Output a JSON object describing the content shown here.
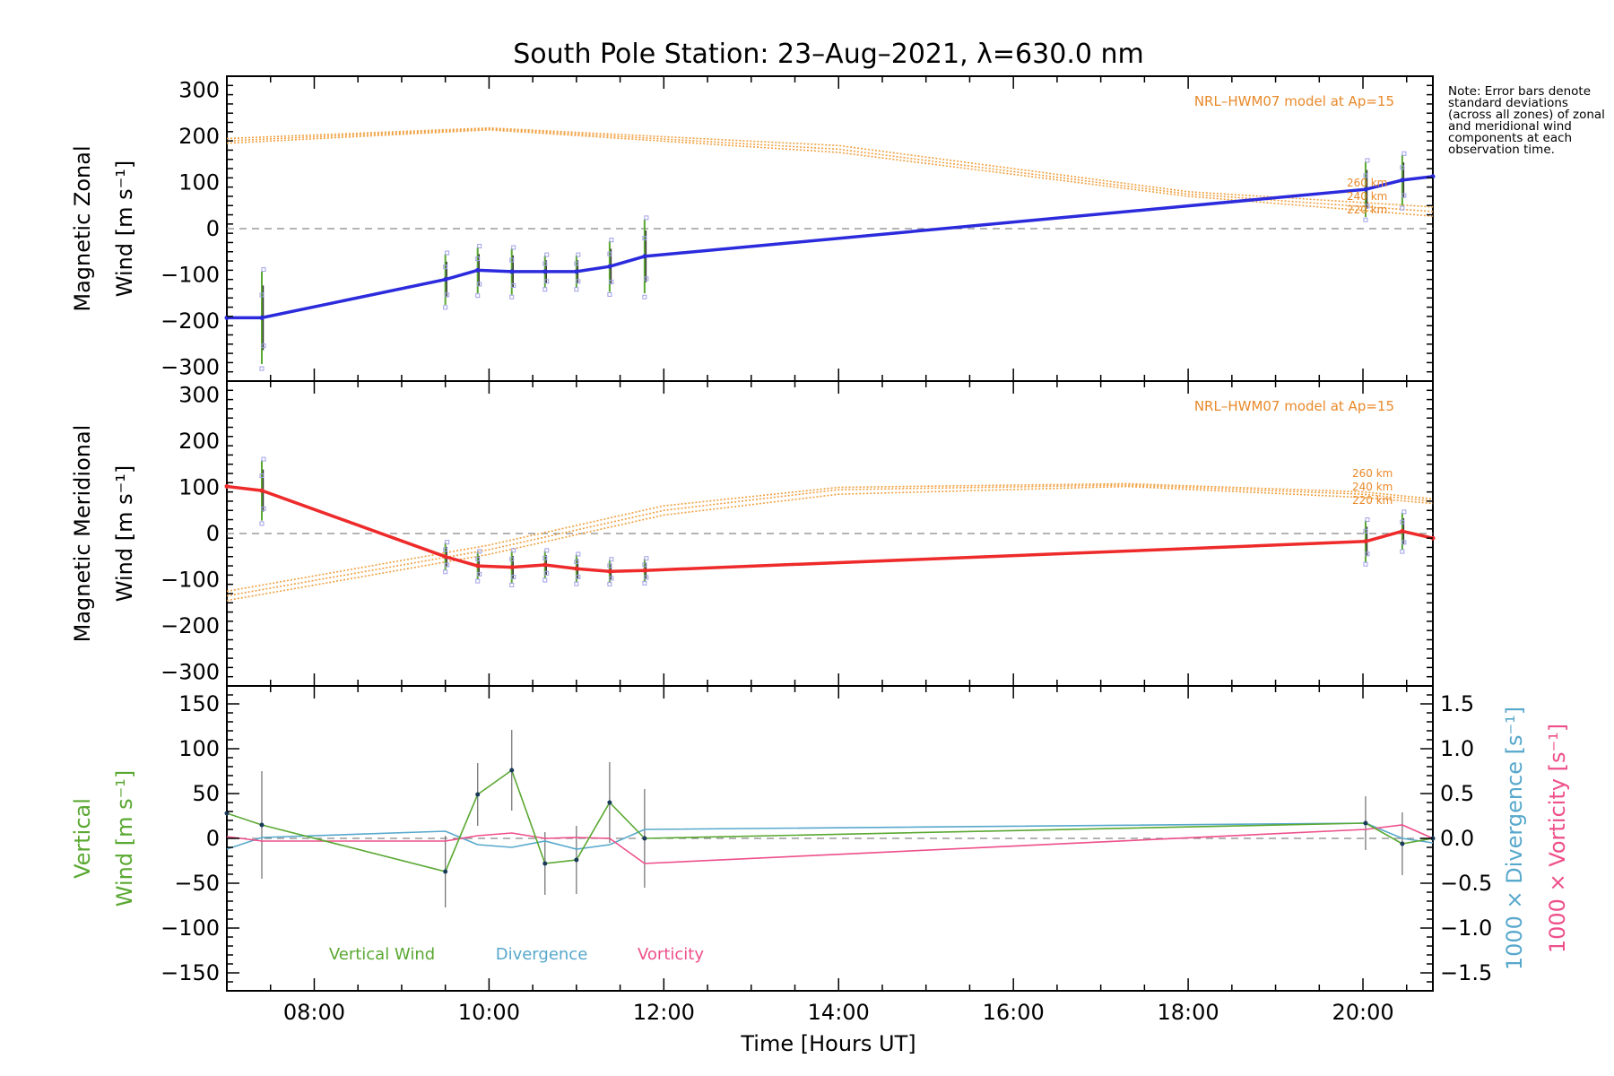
{
  "title": "South Pole Station: 23–Aug–2021, λ=630.0 nm",
  "note": "Note: Error bars denote standard deviations (across all zones) of zonal and meridional wind components at each observation time.",
  "colors": {
    "zonal": "#2b2bdd",
    "meridional": "#ee2a2a",
    "model": "#f0a040",
    "model_text": "#e8892a",
    "vertical": "#5aa832",
    "divergence": "#57a8cc",
    "vorticity": "#ee4f8a",
    "zero_line": "#888888",
    "error_bar": "#777777"
  },
  "chart_data": [
    {
      "name": "zonal",
      "type": "line",
      "ylabel_line1": "Magnetic Zonal",
      "ylabel_line2": "Wind [m s⁻¹]",
      "ylim": [
        -330,
        330
      ],
      "yticks": [
        -300,
        -200,
        -100,
        0,
        100,
        200,
        300
      ],
      "ytick_labels": [
        "−300",
        "−200",
        "−100",
        "0",
        "100",
        "200",
        "300"
      ],
      "model_label": "NRL–HWM07 model at Ap=15",
      "model_alt_labels": [
        "260 km",
        "240 km",
        "220 km"
      ],
      "series": {
        "x": [
          7.0,
          7.4,
          9.5,
          9.87,
          10.26,
          10.64,
          11.0,
          11.38,
          11.78,
          20.03,
          20.45,
          20.8
        ],
        "y": [
          -193,
          -193,
          -110,
          -90,
          -93,
          -93,
          -93,
          -82,
          -60,
          85,
          105,
          113
        ],
        "err": [
          0,
          100,
          55,
          50,
          50,
          35,
          35,
          55,
          80,
          60,
          55,
          0
        ]
      },
      "model": [
        {
          "alt": "260 km",
          "x": [
            7.0,
            10.0,
            14.0,
            18.0,
            20.8
          ],
          "y": [
            185,
            214,
            165,
            70,
            27
          ]
        },
        {
          "alt": "240 km",
          "x": [
            7.0,
            10.0,
            14.0,
            18.0,
            20.8
          ],
          "y": [
            190,
            216,
            172,
            75,
            37
          ]
        },
        {
          "alt": "220 km",
          "x": [
            7.0,
            10.0,
            14.0,
            18.0,
            20.8
          ],
          "y": [
            195,
            218,
            180,
            80,
            47
          ]
        }
      ]
    },
    {
      "name": "meridional",
      "type": "line",
      "ylabel_line1": "Magnetic Meridional",
      "ylabel_line2": "Wind [m s⁻¹]",
      "ylim": [
        -330,
        330
      ],
      "yticks": [
        -300,
        -200,
        -100,
        0,
        100,
        200,
        300
      ],
      "ytick_labels": [
        "−300",
        "−200",
        "−100",
        "0",
        "100",
        "200",
        "300"
      ],
      "model_label": "NRL–HWM07 model at Ap=15",
      "model_alt_labels": [
        "260 km",
        "240 km",
        "220 km"
      ],
      "series": {
        "x": [
          7.0,
          7.4,
          9.5,
          9.87,
          10.26,
          10.64,
          11.0,
          11.38,
          11.78,
          20.03,
          20.45,
          20.8
        ],
        "y": [
          102,
          93,
          -50,
          -70,
          -73,
          -68,
          -76,
          -82,
          -80,
          -17,
          5,
          -10
        ],
        "err": [
          0,
          65,
          30,
          30,
          35,
          30,
          30,
          25,
          25,
          45,
          40,
          0
        ]
      },
      "model": [
        {
          "alt": "260 km",
          "x": [
            7.0,
            10.0,
            12.0,
            14.0,
            17.3,
            20.0,
            20.8
          ],
          "y": [
            -145,
            -45,
            40,
            85,
            102,
            78,
            65
          ]
        },
        {
          "alt": "240 km",
          "x": [
            7.0,
            10.0,
            12.0,
            14.0,
            17.3,
            20.0,
            20.8
          ],
          "y": [
            -135,
            -35,
            50,
            95,
            105,
            85,
            70
          ]
        },
        {
          "alt": "220 km",
          "x": [
            7.0,
            10.0,
            12.0,
            14.0,
            17.3,
            20.0,
            20.8
          ],
          "y": [
            -125,
            -25,
            60,
            100,
            108,
            90,
            75
          ]
        }
      ]
    },
    {
      "name": "vertical",
      "type": "line",
      "ylabel_line1": "Vertical",
      "ylabel_line2": "Wind [m s⁻¹]",
      "right_label_divergence": "1000 × Divergence [s⁻¹]",
      "right_label_vorticity": "1000 × Vorticity [s⁻¹]",
      "ylim": [
        -170,
        170
      ],
      "yticks": [
        -150,
        -100,
        -50,
        0,
        50,
        100,
        150
      ],
      "ytick_labels": [
        "−150",
        "−100",
        "−50",
        "0",
        "50",
        "100",
        "150"
      ],
      "y2lim": [
        -1.7,
        1.7
      ],
      "y2ticks": [
        -1.5,
        -1.0,
        -0.5,
        0.0,
        0.5,
        1.0,
        1.5
      ],
      "y2tick_labels": [
        "−1.5",
        "−1.0",
        "−0.5",
        "0.0",
        "0.5",
        "1.0",
        "1.5"
      ],
      "legend": [
        "Vertical Wind",
        "Divergence",
        "Vorticity"
      ],
      "vertical_wind": {
        "x": [
          7.0,
          7.4,
          9.5,
          9.87,
          10.26,
          10.64,
          11.0,
          11.38,
          11.78,
          20.03,
          20.45,
          20.8
        ],
        "y": [
          28,
          15,
          -37,
          49,
          76,
          -28,
          -24,
          40,
          0,
          17,
          -6,
          0
        ],
        "err": [
          0,
          60,
          40,
          35,
          45,
          35,
          38,
          45,
          55,
          30,
          35,
          0
        ]
      },
      "divergence": {
        "x": [
          7.0,
          7.4,
          9.5,
          9.87,
          10.26,
          10.64,
          11.0,
          11.38,
          11.78,
          20.03,
          20.45,
          20.8
        ],
        "y": [
          -0.12,
          0.01,
          0.08,
          -0.07,
          -0.1,
          -0.03,
          -0.12,
          -0.07,
          0.1,
          0.17,
          0.0,
          -0.05
        ]
      },
      "vorticity": {
        "x": [
          7.0,
          7.4,
          9.5,
          9.87,
          10.26,
          10.64,
          11.0,
          11.38,
          11.78,
          20.03,
          20.45,
          20.8
        ],
        "y": [
          0.02,
          -0.03,
          -0.03,
          0.03,
          0.06,
          0.0,
          0.01,
          0.0,
          -0.28,
          0.1,
          0.15,
          0.0
        ]
      }
    }
  ],
  "xaxis": {
    "label": "Time [Hours UT]",
    "xlim": [
      7.0,
      20.8
    ],
    "ticks": [
      8,
      10,
      12,
      14,
      16,
      18,
      20
    ],
    "tick_labels": [
      "08:00",
      "10:00",
      "12:00",
      "14:00",
      "16:00",
      "18:00",
      "20:00"
    ]
  }
}
